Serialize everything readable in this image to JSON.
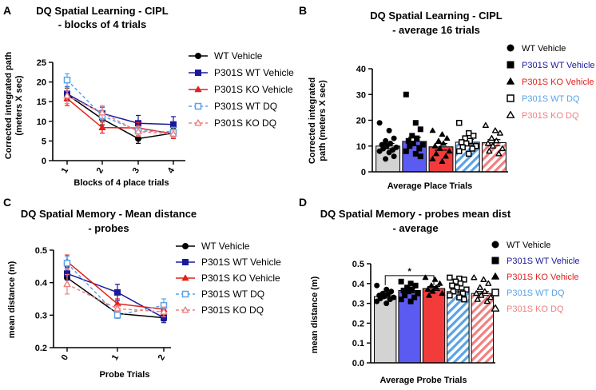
{
  "panel_letters": [
    "A",
    "B",
    "C",
    "D"
  ],
  "chart_data": [
    {
      "id": "A",
      "type": "line",
      "title_lines": [
        "DQ Spatial Learning - CIPL",
        "- blocks of 4 trials"
      ],
      "xlabel": "Blocks of 4 place trials",
      "ylabel_lines": [
        "Corrected integrated path",
        "(meters X sec)"
      ],
      "categories": [
        "1",
        "2",
        "3",
        "4"
      ],
      "ylim": [
        0,
        25
      ],
      "yticks": [
        "0",
        "5",
        "10",
        "15",
        "20",
        "25"
      ],
      "series": [
        {
          "name": "WT Vehicle",
          "color": "#000000",
          "marker": "circle",
          "dash": false,
          "values": [
            16.8,
            10.6,
            5.6,
            7.0
          ],
          "err": [
            1.6,
            1.5,
            1.2,
            1.2
          ]
        },
        {
          "name": "P301S WT Vehicle",
          "color": "#1a1a99",
          "marker": "square",
          "dash": false,
          "values": [
            17.0,
            12.0,
            9.5,
            9.2
          ],
          "err": [
            1.8,
            1.6,
            2.0,
            2.0
          ]
        },
        {
          "name": "P301S KO Vehicle",
          "color": "#e0201c",
          "marker": "triangle",
          "dash": false,
          "values": [
            15.8,
            8.4,
            8.3,
            6.8
          ],
          "err": [
            1.8,
            1.4,
            1.4,
            1.2
          ]
        },
        {
          "name": "P301S WT DQ",
          "color": "#5aa3e6",
          "marker": "square-open",
          "dash": true,
          "values": [
            20.5,
            11.4,
            7.6,
            7.3
          ],
          "err": [
            1.6,
            1.4,
            1.2,
            1.2
          ]
        },
        {
          "name": "P301S KO DQ",
          "color": "#f08080",
          "marker": "triangle-open",
          "dash": true,
          "values": [
            16.5,
            12.2,
            7.4,
            6.8
          ],
          "err": [
            2.0,
            1.8,
            1.2,
            1.0
          ]
        }
      ]
    },
    {
      "id": "B",
      "type": "bar",
      "title_lines": [
        "DQ Spatial Learning - CIPL",
        "- average 16 trials"
      ],
      "xlabel": "Average Place Trials",
      "ylabel_lines": [
        "Corrected integrated",
        "path (meters X sec)"
      ],
      "ylim": [
        0,
        40
      ],
      "yticks": [
        "0",
        "10",
        "20",
        "30",
        "40"
      ],
      "bars": [
        {
          "name": "WT Vehicle",
          "label_color": "#000000",
          "fill": "#d3d3d3",
          "pattern": "solid",
          "marker": "circle",
          "value": 10.0,
          "err": 1.0,
          "points": [
            19.0,
            16.0,
            13.0,
            12.0,
            11.0,
            10.5,
            10.0,
            9.5,
            9.0,
            8.5,
            8.0,
            7.5,
            6.0,
            5.0
          ]
        },
        {
          "name": "P301S WT Vehicle",
          "label_color": "#1a1a99",
          "fill": "#5b5bf2",
          "pattern": "solid",
          "marker": "square",
          "value": 11.8,
          "err": 1.6,
          "points": [
            30.0,
            19.0,
            16.5,
            14.0,
            13.0,
            12.0,
            11.0,
            10.5,
            10.0,
            9.0,
            8.0,
            7.0,
            6.0
          ]
        },
        {
          "name": "P301S KO Vehicle",
          "label_color": "#e0201c",
          "fill": "#f23c3c",
          "pattern": "solid",
          "marker": "triangle",
          "value": 9.7,
          "err": 1.3,
          "points": [
            16.0,
            14.5,
            13.0,
            12.0,
            11.0,
            10.0,
            9.0,
            8.0,
            7.0,
            6.0,
            5.0,
            4.0
          ]
        },
        {
          "name": "P301S WT DQ",
          "label_color": "#5aa3e6",
          "fill": "#5aa3e6",
          "pattern": "hatch",
          "marker": "square-open",
          "value": 11.5,
          "err": 1.0,
          "points": [
            19.0,
            15.0,
            14.0,
            13.0,
            12.0,
            11.5,
            11.0,
            10.0,
            9.5,
            9.0,
            8.0,
            7.0
          ]
        },
        {
          "name": "P301S KO DQ",
          "label_color": "#f08080",
          "fill": "#f08080",
          "pattern": "hatch",
          "marker": "triangle-open",
          "value": 11.3,
          "err": 1.2,
          "points": [
            18.0,
            16.0,
            15.0,
            13.0,
            12.0,
            11.0,
            10.0,
            9.0,
            8.0,
            7.0
          ]
        }
      ]
    },
    {
      "id": "C",
      "type": "line",
      "title_lines": [
        "DQ Spatial Memory - Mean distance",
        "- probes"
      ],
      "xlabel": "Probe Trials",
      "ylabel_lines": [
        "mean distance (m)"
      ],
      "categories": [
        "0",
        "1",
        "2"
      ],
      "ylim": [
        0.2,
        0.5
      ],
      "yticks": [
        "0.2",
        "0.3",
        "0.4",
        "0.5"
      ],
      "series": [
        {
          "name": "WT Vehicle",
          "color": "#000000",
          "marker": "circle",
          "dash": false,
          "values": [
            0.415,
            0.305,
            0.292
          ],
          "err": [
            0.02,
            0.012,
            0.01
          ]
        },
        {
          "name": "P301S WT Vehicle",
          "color": "#1a1a99",
          "marker": "square",
          "dash": false,
          "values": [
            0.428,
            0.37,
            0.292
          ],
          "err": [
            0.02,
            0.025,
            0.015
          ]
        },
        {
          "name": "P301S KO Vehicle",
          "color": "#e0201c",
          "marker": "triangle",
          "dash": false,
          "values": [
            0.465,
            0.335,
            0.318
          ],
          "err": [
            0.02,
            0.015,
            0.015
          ]
        },
        {
          "name": "P301S WT DQ",
          "color": "#5aa3e6",
          "marker": "square-open",
          "dash": true,
          "values": [
            0.46,
            0.3,
            0.33
          ],
          "err": [
            0.02,
            0.01,
            0.02
          ]
        },
        {
          "name": "P301S KO DQ",
          "color": "#f08080",
          "marker": "triangle-open",
          "dash": true,
          "values": [
            0.395,
            0.32,
            0.31
          ],
          "err": [
            0.03,
            0.01,
            0.015
          ]
        }
      ]
    },
    {
      "id": "D",
      "type": "bar",
      "title_lines": [
        "DQ Spatial Memory - probes mean dist",
        "- average"
      ],
      "xlabel": "Average Probe Trials",
      "ylabel_lines": [
        "mean distance (m)"
      ],
      "ylim": [
        0,
        0.5
      ],
      "yticks": [
        "0.0",
        "0.1",
        "0.2",
        "0.3",
        "0.4",
        "0.5"
      ],
      "significance": {
        "from": 0,
        "to": 2,
        "label": "*"
      },
      "bars": [
        {
          "name": "WT Vehicle",
          "label_color": "#000000",
          "fill": "#d3d3d3",
          "pattern": "solid",
          "marker": "circle",
          "value": 0.335,
          "err": 0.008,
          "points": [
            0.39,
            0.37,
            0.36,
            0.35,
            0.345,
            0.34,
            0.335,
            0.33,
            0.325,
            0.32,
            0.31,
            0.3
          ]
        },
        {
          "name": "P301S WT Vehicle",
          "label_color": "#1a1a99",
          "fill": "#5b5bf2",
          "pattern": "solid",
          "marker": "square",
          "value": 0.365,
          "err": 0.012,
          "points": [
            0.41,
            0.4,
            0.39,
            0.38,
            0.37,
            0.365,
            0.36,
            0.35,
            0.34,
            0.33,
            0.32,
            0.31
          ]
        },
        {
          "name": "P301S KO Vehicle",
          "label_color": "#e0201c",
          "fill": "#f23c3c",
          "pattern": "solid",
          "marker": "triangle",
          "value": 0.375,
          "err": 0.01,
          "points": [
            0.43,
            0.42,
            0.4,
            0.39,
            0.38,
            0.37,
            0.36,
            0.35,
            0.34
          ]
        },
        {
          "name": "P301S WT DQ",
          "label_color": "#5aa3e6",
          "fill": "#5aa3e6",
          "pattern": "hatch",
          "marker": "square-open",
          "value": 0.36,
          "err": 0.008,
          "points": [
            0.43,
            0.425,
            0.42,
            0.41,
            0.4,
            0.39,
            0.38,
            0.37,
            0.36,
            0.35,
            0.34,
            0.33,
            0.32
          ]
        },
        {
          "name": "P301S KO DQ",
          "label_color": "#f08080",
          "fill": "#f08080",
          "pattern": "hatch",
          "marker": "triangle-open",
          "value": 0.35,
          "err": 0.01,
          "points": [
            0.43,
            0.42,
            0.4,
            0.38,
            0.36,
            0.35,
            0.34,
            0.33,
            0.32,
            0.31
          ]
        }
      ]
    }
  ]
}
